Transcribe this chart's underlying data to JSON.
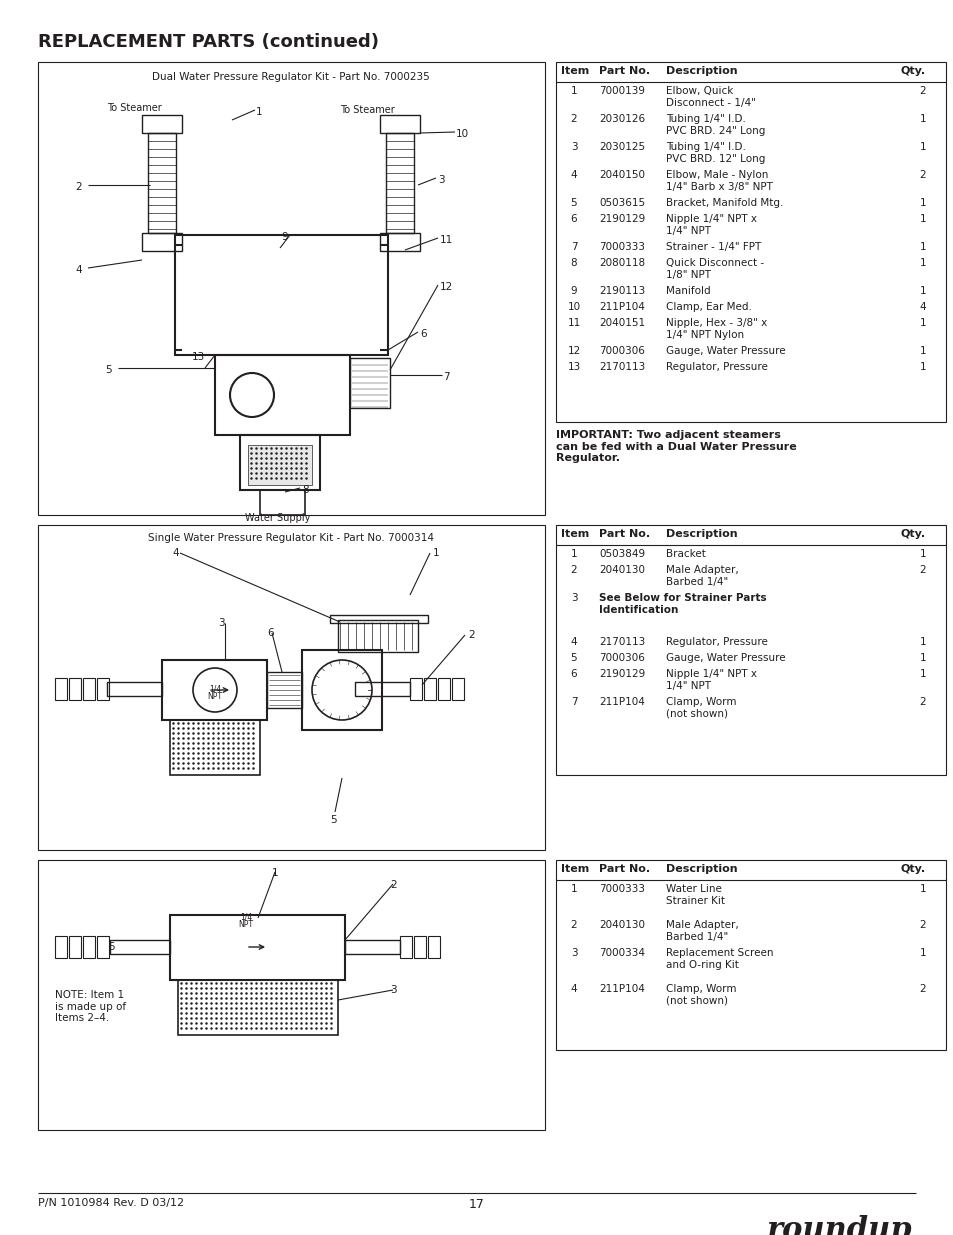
{
  "title": "REPLACEMENT PARTS (continued)",
  "page_num": "17",
  "footer_left": "P/N 1010984 Rev. D 03/12",
  "bg_color": "#ffffff",
  "text_color": "#231f20",
  "section1": {
    "diagram_title": "Dual Water Pressure Regulator Kit - Part No. 7000235",
    "table_rows": [
      [
        "1",
        "7000139",
        "Elbow, Quick\nDisconnect - 1/4\"",
        "2"
      ],
      [
        "2",
        "2030126",
        "Tubing 1/4\" I.D.\nPVC BRD. 24\" Long",
        "1"
      ],
      [
        "3",
        "2030125",
        "Tubing 1/4\" I.D.\nPVC BRD. 12\" Long",
        "1"
      ],
      [
        "4",
        "2040150",
        "Elbow, Male - Nylon\n1/4\" Barb x 3/8\" NPT",
        "2"
      ],
      [
        "5",
        "0503615",
        "Bracket, Manifold Mtg.",
        "1"
      ],
      [
        "6",
        "2190129",
        "Nipple 1/4\" NPT x\n1/4\" NPT",
        "1"
      ],
      [
        "7",
        "7000333",
        "Strainer - 1/4\" FPT",
        "1"
      ],
      [
        "8",
        "2080118",
        "Quick Disconnect -\n1/8\" NPT",
        "1"
      ],
      [
        "9",
        "2190113",
        "Manifold",
        "1"
      ],
      [
        "10",
        "211P104",
        "Clamp, Ear Med.",
        "4"
      ],
      [
        "11",
        "2040151",
        "Nipple, Hex - 3/8\" x\n1/4\" NPT Nylon",
        "1"
      ],
      [
        "12",
        "7000306",
        "Gauge, Water Pressure",
        "1"
      ],
      [
        "13",
        "2170113",
        "Regulator, Pressure",
        "1"
      ]
    ],
    "note": "IMPORTANT: Two adjacent steamers\ncan be fed with a Dual Water Pressure\nRegulator."
  },
  "section2": {
    "diagram_title": "Single Water Pressure Regulator Kit - Part No. 7000314",
    "table_rows": [
      [
        "1",
        "0503849",
        "Bracket",
        "1"
      ],
      [
        "2",
        "2040130",
        "Male Adapter,\nBarbed 1/4\"",
        "2"
      ],
      [
        "3",
        "",
        "See Below for Strainer Parts\nIdentification",
        ""
      ],
      [
        "4",
        "2170113",
        "Regulator, Pressure",
        "1"
      ],
      [
        "5",
        "7000306",
        "Gauge, Water Pressure",
        "1"
      ],
      [
        "6",
        "2190129",
        "Nipple 1/4\" NPT x\n1/4\" NPT",
        "1"
      ],
      [
        "7",
        "211P104",
        "Clamp, Worm\n(not shown)",
        "2"
      ]
    ]
  },
  "section3": {
    "table_rows": [
      [
        "1",
        "7000333",
        "Water Line\nStrainer Kit",
        "1"
      ],
      [
        "2",
        "2040130",
        "Male Adapter,\nBarbed 1/4\"",
        "2"
      ],
      [
        "3",
        "7000334",
        "Replacement Screen\nand O-ring Kit",
        "1"
      ],
      [
        "4",
        "211P104",
        "Clamp, Worm\n(not shown)",
        "2"
      ]
    ],
    "note": "NOTE: Item 1\nis made up of\nItems 2–4."
  }
}
